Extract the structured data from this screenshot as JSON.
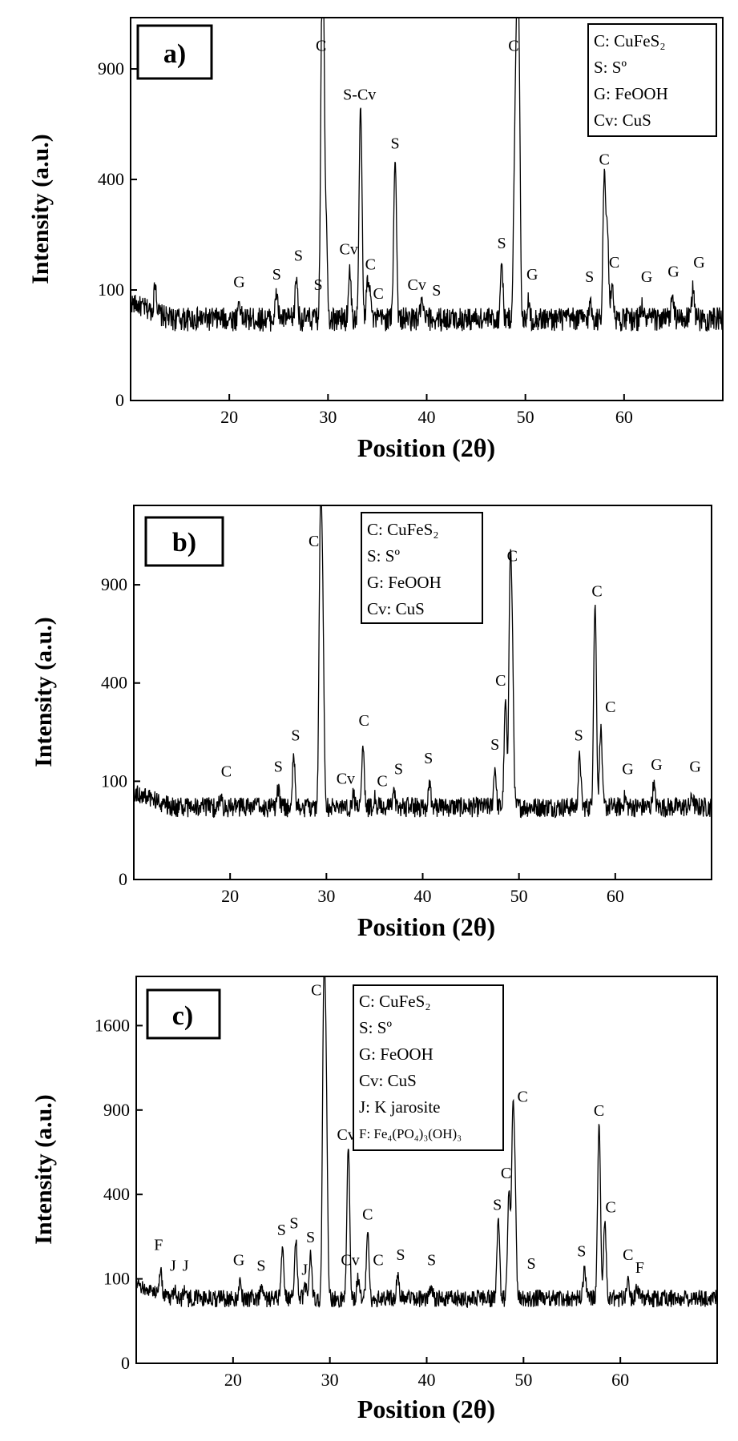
{
  "figure": {
    "xlabel": "Position (2θ)",
    "ylabel": "Intensity (a.u.)"
  },
  "chart_data": [
    {
      "type": "line",
      "panel": "a)",
      "xlim": [
        10,
        70
      ],
      "yticks": [
        0,
        100,
        400,
        900
      ],
      "ytick_labels": [
        "0",
        "100",
        "400",
        "900"
      ],
      "xticks": [
        20,
        30,
        40,
        50,
        60
      ],
      "xtick_labels": [
        "20",
        "30",
        "40",
        "50",
        "60"
      ],
      "baseline": 55,
      "noise": 16,
      "legend": [
        "C: CuFeS₂",
        "S: Sº",
        "G: FeOOH",
        "Cv: CuS"
      ],
      "peaks": [
        {
          "x": 12.5,
          "y": 105
        },
        {
          "x": 21.0,
          "y": 82
        },
        {
          "x": 24.8,
          "y": 95
        },
        {
          "x": 26.8,
          "y": 125
        },
        {
          "x": 29.4,
          "y": 900
        },
        {
          "x": 29.5,
          "y": 1200
        },
        {
          "x": 29.8,
          "y": 260
        },
        {
          "x": 32.2,
          "y": 140
        },
        {
          "x": 33.3,
          "y": 700
        },
        {
          "x": 34.0,
          "y": 115
        },
        {
          "x": 34.3,
          "y": 100
        },
        {
          "x": 36.8,
          "y": 480
        },
        {
          "x": 39.5,
          "y": 80
        },
        {
          "x": 47.6,
          "y": 155
        },
        {
          "x": 48.9,
          "y": 330
        },
        {
          "x": 49.3,
          "y": 1200
        },
        {
          "x": 49.1,
          "y": 900
        },
        {
          "x": 50.3,
          "y": 80
        },
        {
          "x": 56.6,
          "y": 78
        },
        {
          "x": 58.0,
          "y": 420
        },
        {
          "x": 58.3,
          "y": 240
        },
        {
          "x": 58.8,
          "y": 115
        },
        {
          "x": 61.8,
          "y": 75
        },
        {
          "x": 64.9,
          "y": 92
        },
        {
          "x": 67.0,
          "y": 108
        }
      ],
      "annotations": [
        {
          "text": "C",
          "x": 29.3,
          "y": 1000
        },
        {
          "text": "C",
          "x": 48.8,
          "y": 1000
        },
        {
          "text": "S-Cv",
          "x": 33.2,
          "y": 740
        },
        {
          "text": "S",
          "x": 36.8,
          "y": 520
        },
        {
          "text": "C",
          "x": 58.0,
          "y": 455
        },
        {
          "text": "Cv",
          "x": 32.1,
          "y": 175
        },
        {
          "text": "S",
          "x": 27.0,
          "y": 160
        },
        {
          "text": "S",
          "x": 24.8,
          "y": 120
        },
        {
          "text": "G",
          "x": 21.0,
          "y": 105
        },
        {
          "text": "S",
          "x": 29.0,
          "y": 100
        },
        {
          "text": "C",
          "x": 34.3,
          "y": 140
        },
        {
          "text": "C",
          "x": 35.1,
          "y": 85
        },
        {
          "text": "Cv",
          "x": 39.0,
          "y": 100
        },
        {
          "text": "S",
          "x": 41.0,
          "y": 90
        },
        {
          "text": "S",
          "x": 47.6,
          "y": 190
        },
        {
          "text": "G",
          "x": 50.7,
          "y": 120
        },
        {
          "text": "S",
          "x": 56.5,
          "y": 115
        },
        {
          "text": "C",
          "x": 59.0,
          "y": 145
        },
        {
          "text": "G",
          "x": 62.3,
          "y": 115
        },
        {
          "text": "G",
          "x": 65.0,
          "y": 125
        },
        {
          "text": "G",
          "x": 67.6,
          "y": 145
        }
      ]
    },
    {
      "type": "line",
      "panel": "b)",
      "xlim": [
        10,
        70
      ],
      "yticks": [
        0,
        100,
        400,
        900
      ],
      "ytick_labels": [
        "0",
        "100",
        "400",
        "900"
      ],
      "xticks": [
        20,
        30,
        40,
        50,
        60
      ],
      "xtick_labels": [
        "20",
        "30",
        "40",
        "50",
        "60"
      ],
      "baseline": 55,
      "noise": 15,
      "legend": [
        "C: CuFeS₂",
        "S: Sº",
        "G: FeOOH",
        "Cv: CuS"
      ],
      "peaks": [
        {
          "x": 19.0,
          "y": 70
        },
        {
          "x": 25.0,
          "y": 85
        },
        {
          "x": 26.6,
          "y": 160
        },
        {
          "x": 29.4,
          "y": 1450
        },
        {
          "x": 29.6,
          "y": 700
        },
        {
          "x": 32.8,
          "y": 75
        },
        {
          "x": 33.8,
          "y": 190
        },
        {
          "x": 35.0,
          "y": 70
        },
        {
          "x": 37.0,
          "y": 80
        },
        {
          "x": 40.7,
          "y": 100
        },
        {
          "x": 47.5,
          "y": 130
        },
        {
          "x": 48.6,
          "y": 330
        },
        {
          "x": 49.1,
          "y": 1000
        },
        {
          "x": 49.3,
          "y": 500
        },
        {
          "x": 56.3,
          "y": 160
        },
        {
          "x": 57.9,
          "y": 780
        },
        {
          "x": 58.5,
          "y": 240
        },
        {
          "x": 61.0,
          "y": 70
        },
        {
          "x": 64.0,
          "y": 95
        },
        {
          "x": 68.0,
          "y": 72
        }
      ],
      "annotations": [
        {
          "text": "C",
          "x": 28.7,
          "y": 1150
        },
        {
          "text": "C",
          "x": 49.3,
          "y": 1050
        },
        {
          "text": "C",
          "x": 58.1,
          "y": 830
        },
        {
          "text": "C",
          "x": 48.1,
          "y": 390
        },
        {
          "text": "C",
          "x": 33.9,
          "y": 245
        },
        {
          "text": "C",
          "x": 59.5,
          "y": 290
        },
        {
          "text": "C",
          "x": 19.6,
          "y": 110
        },
        {
          "text": "S",
          "x": 26.8,
          "y": 200
        },
        {
          "text": "S",
          "x": 25.0,
          "y": 120
        },
        {
          "text": "Cv",
          "x": 32.0,
          "y": 95
        },
        {
          "text": "C",
          "x": 35.8,
          "y": 90
        },
        {
          "text": "S",
          "x": 37.5,
          "y": 115
        },
        {
          "text": "S",
          "x": 40.6,
          "y": 140
        },
        {
          "text": "S",
          "x": 47.5,
          "y": 175
        },
        {
          "text": "S",
          "x": 56.2,
          "y": 200
        },
        {
          "text": "G",
          "x": 61.3,
          "y": 115
        },
        {
          "text": "G",
          "x": 64.3,
          "y": 125
        },
        {
          "text": "G",
          "x": 68.3,
          "y": 120
        }
      ]
    },
    {
      "type": "line",
      "panel": "c)",
      "xlim": [
        10,
        70
      ],
      "yticks": [
        0,
        100,
        400,
        900,
        1600
      ],
      "ytick_labels": [
        "0",
        "100",
        "400",
        "900",
        "1600"
      ],
      "xticks": [
        20,
        30,
        40,
        50,
        60
      ],
      "xtick_labels": [
        "20",
        "30",
        "40",
        "50",
        "60"
      ],
      "baseline": 60,
      "noise": 16,
      "legend": [
        "C: CuFeS₂",
        "S: Sº",
        "G: FeOOH",
        "Cv: CuS",
        "J: K jarosite",
        "F: Fe₄(PO₄)₃(OH)₃"
      ],
      "peaks": [
        {
          "x": 12.5,
          "y": 115
        },
        {
          "x": 14.0,
          "y": 80
        },
        {
          "x": 15.0,
          "y": 78
        },
        {
          "x": 20.7,
          "y": 95
        },
        {
          "x": 22.9,
          "y": 85
        },
        {
          "x": 25.1,
          "y": 190
        },
        {
          "x": 26.5,
          "y": 210
        },
        {
          "x": 28.0,
          "y": 165
        },
        {
          "x": 27.5,
          "y": 85
        },
        {
          "x": 29.4,
          "y": 2100
        },
        {
          "x": 29.6,
          "y": 1000
        },
        {
          "x": 31.9,
          "y": 660
        },
        {
          "x": 32.9,
          "y": 100
        },
        {
          "x": 33.9,
          "y": 250
        },
        {
          "x": 37.0,
          "y": 110
        },
        {
          "x": 40.5,
          "y": 80
        },
        {
          "x": 47.4,
          "y": 290
        },
        {
          "x": 48.5,
          "y": 420
        },
        {
          "x": 48.9,
          "y": 850
        },
        {
          "x": 49.1,
          "y": 450
        },
        {
          "x": 56.3,
          "y": 130
        },
        {
          "x": 57.8,
          "y": 800
        },
        {
          "x": 58.4,
          "y": 280
        },
        {
          "x": 60.8,
          "y": 105
        },
        {
          "x": 61.7,
          "y": 85
        }
      ],
      "annotations": [
        {
          "text": "C",
          "x": 28.6,
          "y": 1900
        },
        {
          "text": "C",
          "x": 49.9,
          "y": 960
        },
        {
          "text": "C",
          "x": 57.8,
          "y": 860
        },
        {
          "text": "Cv",
          "x": 31.7,
          "y": 700
        },
        {
          "text": "C",
          "x": 48.2,
          "y": 480
        },
        {
          "text": "S",
          "x": 47.3,
          "y": 330
        },
        {
          "text": "C",
          "x": 59.0,
          "y": 320
        },
        {
          "text": "C",
          "x": 33.9,
          "y": 290
        },
        {
          "text": "F",
          "x": 12.3,
          "y": 180
        },
        {
          "text": "J",
          "x": 13.8,
          "y": 120
        },
        {
          "text": "J",
          "x": 15.1,
          "y": 120
        },
        {
          "text": "G",
          "x": 20.6,
          "y": 135
        },
        {
          "text": "S",
          "x": 22.9,
          "y": 120
        },
        {
          "text": "S",
          "x": 25.0,
          "y": 230
        },
        {
          "text": "S",
          "x": 26.3,
          "y": 255
        },
        {
          "text": "S",
          "x": 28.0,
          "y": 205
        },
        {
          "text": "J",
          "x": 27.4,
          "y": 110
        },
        {
          "text": "Cv",
          "x": 32.1,
          "y": 135
        },
        {
          "text": "C",
          "x": 35.0,
          "y": 135
        },
        {
          "text": "S",
          "x": 37.3,
          "y": 150
        },
        {
          "text": "S",
          "x": 40.5,
          "y": 135
        },
        {
          "text": "S",
          "x": 50.8,
          "y": 125
        },
        {
          "text": "S",
          "x": 56.0,
          "y": 160
        },
        {
          "text": "C",
          "x": 60.8,
          "y": 150
        },
        {
          "text": "F",
          "x": 62.0,
          "y": 115
        }
      ]
    }
  ]
}
